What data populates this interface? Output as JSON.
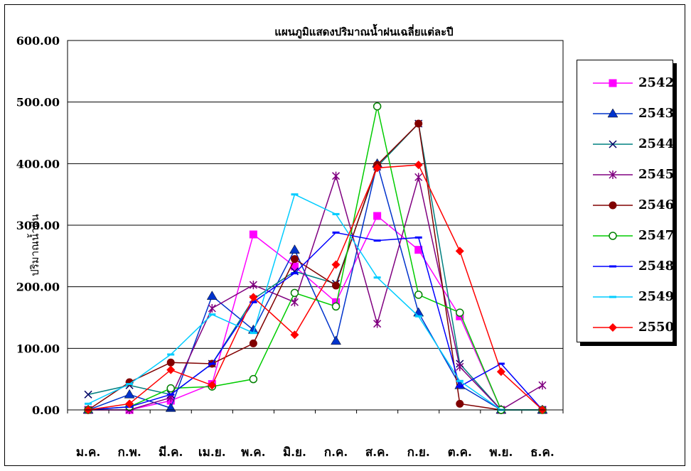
{
  "chart_data": {
    "type": "line",
    "title": "แผนภูมิแสดงปริมาณน้ำฝนเฉลี่ยแต่ละปี",
    "xlabel": "",
    "ylabel": "ปริมาณน้ำฝน",
    "ylim": [
      0,
      600
    ],
    "yticks": [
      "0.00",
      "100.00",
      "200.00",
      "300.00",
      "400.00",
      "500.00",
      "600.00"
    ],
    "categories": [
      "ม.ค.",
      "ก.พ.",
      "มี.ค.",
      "เม.ย.",
      "พ.ค.",
      "มิ.ย.",
      "ก.ค.",
      "ส.ค.",
      "ก.ย.",
      "ต.ค.",
      "พ.ย.",
      "ธ.ค."
    ],
    "grid": true,
    "legend_position": "right",
    "series": [
      {
        "name": "2542",
        "color": "#ff00ff",
        "marker": "square",
        "values": [
          0,
          0,
          15,
          42,
          285,
          233,
          175,
          315,
          260,
          152,
          0,
          0
        ]
      },
      {
        "name": "2543",
        "color": "#0033cc",
        "marker": "triangle",
        "values": [
          0,
          25,
          3,
          185,
          130,
          260,
          112,
          400,
          158,
          40,
          0,
          0
        ]
      },
      {
        "name": "2544",
        "color": "#008080",
        "marker": "x",
        "values": [
          25,
          40,
          25,
          75,
          180,
          225,
          205,
          395,
          465,
          75,
          0,
          0
        ]
      },
      {
        "name": "2545",
        "color": "#800080",
        "marker": "star",
        "values": [
          0,
          0,
          20,
          165,
          203,
          175,
          380,
          140,
          378,
          70,
          0,
          40
        ]
      },
      {
        "name": "2546",
        "color": "#800000",
        "marker": "circle",
        "values": [
          0,
          45,
          77,
          75,
          108,
          245,
          202,
          398,
          465,
          10,
          0,
          0
        ]
      },
      {
        "name": "2547",
        "color": "#00cc00",
        "marker": "circle-open",
        "values": [
          0,
          5,
          35,
          38,
          50,
          190,
          168,
          493,
          187,
          158,
          0,
          0
        ]
      },
      {
        "name": "2548",
        "color": "#0000ff",
        "marker": "dash",
        "values": [
          0,
          5,
          25,
          75,
          175,
          222,
          288,
          275,
          280,
          38,
          75,
          0
        ]
      },
      {
        "name": "2549",
        "color": "#00ccff",
        "marker": "dash",
        "values": [
          10,
          42,
          90,
          155,
          125,
          350,
          318,
          215,
          152,
          47,
          0,
          0
        ]
      },
      {
        "name": "2550",
        "color": "#ff0000",
        "marker": "diamond",
        "values": [
          0,
          10,
          65,
          40,
          183,
          122,
          236,
          393,
          398,
          258,
          62,
          0
        ]
      }
    ]
  }
}
